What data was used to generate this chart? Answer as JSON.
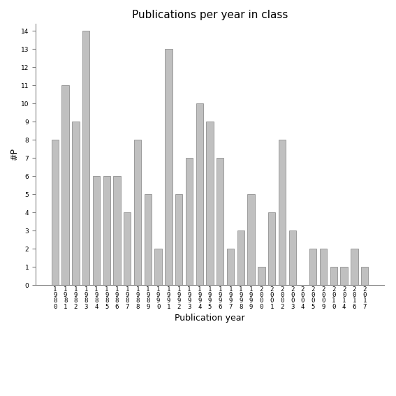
{
  "categories": [
    "1980",
    "1981",
    "1982",
    "1983",
    "1984",
    "1985",
    "1986",
    "1987",
    "1988",
    "1989",
    "1990",
    "1991",
    "1992",
    "1993",
    "1994",
    "1995",
    "1996",
    "1997",
    "1998",
    "1999",
    "2000",
    "2001",
    "2002",
    "2003",
    "2004",
    "2005",
    "2009",
    "2010",
    "2014",
    "2016",
    "2017"
  ],
  "values": [
    8,
    11,
    9,
    14,
    6,
    6,
    6,
    4,
    8,
    5,
    2,
    13,
    5,
    7,
    10,
    9,
    7,
    2,
    3,
    5,
    1,
    4,
    8,
    3,
    0,
    2,
    2,
    1,
    1,
    2,
    1
  ],
  "bar_color": "#c0c0c0",
  "bar_edgecolor": "#808080",
  "title": "Publications per year in class",
  "ylabel": "#P",
  "xlabel": "Publication year",
  "ylim_max": 14,
  "yticks": [
    0,
    1,
    2,
    3,
    4,
    5,
    6,
    7,
    8,
    9,
    10,
    11,
    12,
    13,
    14
  ],
  "background_color": "#ffffff",
  "title_fontsize": 11,
  "label_fontsize": 9,
  "tick_fontsize": 6.5,
  "bar_width": 0.7
}
